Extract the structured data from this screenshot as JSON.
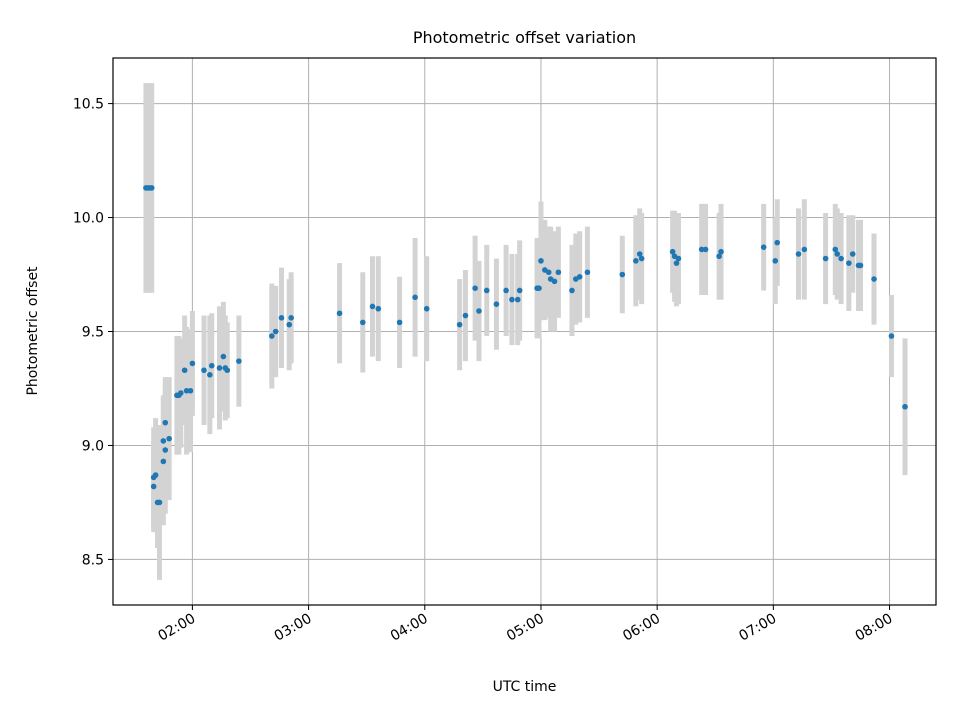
{
  "chart_data": {
    "type": "scatter",
    "title": "Photometric offset variation",
    "xlabel": "UTC time",
    "ylabel": "Photometric offset",
    "grid": true,
    "x_ticks": [
      "02:00",
      "03:00",
      "04:00",
      "05:00",
      "06:00",
      "07:00",
      "08:00"
    ],
    "y_ticks": [
      "8.5",
      "9.0",
      "9.5",
      "10.0",
      "10.5"
    ],
    "xlim": [
      "01:19",
      "08:24"
    ],
    "ylim": [
      8.3,
      10.7
    ],
    "colors": {
      "point": "#1f77b4",
      "errorbar": "#d3d3d3",
      "grid": "#b0b0b0"
    },
    "points": [
      {
        "x": "01:36",
        "y": 10.13,
        "err": 0.46
      },
      {
        "x": "01:37",
        "y": 10.13,
        "err": 0.46
      },
      {
        "x": "01:38",
        "y": 10.13,
        "err": 0.46
      },
      {
        "x": "01:39",
        "y": 10.13,
        "err": 0.46
      },
      {
        "x": "01:40",
        "y": 8.86,
        "err": 0.22
      },
      {
        "x": "01:40",
        "y": 8.82,
        "err": 0.2
      },
      {
        "x": "01:41",
        "y": 8.87,
        "err": 0.25
      },
      {
        "x": "01:42",
        "y": 8.75,
        "err": 0.2
      },
      {
        "x": "01:43",
        "y": 8.75,
        "err": 0.34
      },
      {
        "x": "01:45",
        "y": 9.02,
        "err": 0.2
      },
      {
        "x": "01:45",
        "y": 8.93,
        "err": 0.28
      },
      {
        "x": "01:46",
        "y": 8.98,
        "err": 0.28
      },
      {
        "x": "01:46",
        "y": 9.1,
        "err": 0.2
      },
      {
        "x": "01:48",
        "y": 9.03,
        "err": 0.27
      },
      {
        "x": "01:52",
        "y": 9.22,
        "err": 0.26
      },
      {
        "x": "01:53",
        "y": 9.22,
        "err": 0.26
      },
      {
        "x": "01:54",
        "y": 9.23,
        "err": 0.24
      },
      {
        "x": "01:56",
        "y": 9.33,
        "err": 0.24
      },
      {
        "x": "01:57",
        "y": 9.24,
        "err": 0.28
      },
      {
        "x": "01:59",
        "y": 9.24,
        "err": 0.27
      },
      {
        "x": "02:00",
        "y": 9.36,
        "err": 0.23
      },
      {
        "x": "02:06",
        "y": 9.33,
        "err": 0.24
      },
      {
        "x": "02:09",
        "y": 9.31,
        "err": 0.26
      },
      {
        "x": "02:10",
        "y": 9.35,
        "err": 0.23
      },
      {
        "x": "02:14",
        "y": 9.34,
        "err": 0.27
      },
      {
        "x": "02:16",
        "y": 9.39,
        "err": 0.24
      },
      {
        "x": "02:17",
        "y": 9.34,
        "err": 0.23
      },
      {
        "x": "02:18",
        "y": 9.33,
        "err": 0.21
      },
      {
        "x": "02:24",
        "y": 9.37,
        "err": 0.2
      },
      {
        "x": "02:41",
        "y": 9.48,
        "err": 0.23
      },
      {
        "x": "02:43",
        "y": 9.5,
        "err": 0.2
      },
      {
        "x": "02:46",
        "y": 9.56,
        "err": 0.22
      },
      {
        "x": "02:50",
        "y": 9.53,
        "err": 0.2
      },
      {
        "x": "02:51",
        "y": 9.56,
        "err": 0.2
      },
      {
        "x": "03:16",
        "y": 9.58,
        "err": 0.22
      },
      {
        "x": "03:28",
        "y": 9.54,
        "err": 0.22
      },
      {
        "x": "03:33",
        "y": 9.61,
        "err": 0.22
      },
      {
        "x": "03:36",
        "y": 9.6,
        "err": 0.23
      },
      {
        "x": "03:47",
        "y": 9.54,
        "err": 0.2
      },
      {
        "x": "03:55",
        "y": 9.65,
        "err": 0.26
      },
      {
        "x": "04:01",
        "y": 9.6,
        "err": 0.23
      },
      {
        "x": "04:18",
        "y": 9.53,
        "err": 0.2
      },
      {
        "x": "04:21",
        "y": 9.57,
        "err": 0.2
      },
      {
        "x": "04:26",
        "y": 9.69,
        "err": 0.23
      },
      {
        "x": "04:28",
        "y": 9.59,
        "err": 0.22
      },
      {
        "x": "04:32",
        "y": 9.68,
        "err": 0.2
      },
      {
        "x": "04:37",
        "y": 9.62,
        "err": 0.2
      },
      {
        "x": "04:42",
        "y": 9.68,
        "err": 0.2
      },
      {
        "x": "04:45",
        "y": 9.64,
        "err": 0.2
      },
      {
        "x": "04:48",
        "y": 9.64,
        "err": 0.2
      },
      {
        "x": "04:49",
        "y": 9.68,
        "err": 0.22
      },
      {
        "x": "04:58",
        "y": 9.69,
        "err": 0.22
      },
      {
        "x": "04:59",
        "y": 9.69,
        "err": 0.22
      },
      {
        "x": "05:00",
        "y": 9.81,
        "err": 0.26
      },
      {
        "x": "05:02",
        "y": 9.77,
        "err": 0.22
      },
      {
        "x": "05:04",
        "y": 9.76,
        "err": 0.2
      },
      {
        "x": "05:05",
        "y": 9.73,
        "err": 0.23
      },
      {
        "x": "05:07",
        "y": 9.72,
        "err": 0.22
      },
      {
        "x": "05:09",
        "y": 9.76,
        "err": 0.2
      },
      {
        "x": "05:16",
        "y": 9.68,
        "err": 0.2
      },
      {
        "x": "05:18",
        "y": 9.73,
        "err": 0.2
      },
      {
        "x": "05:20",
        "y": 9.74,
        "err": 0.2
      },
      {
        "x": "05:24",
        "y": 9.76,
        "err": 0.2
      },
      {
        "x": "05:42",
        "y": 9.75,
        "err": 0.17
      },
      {
        "x": "05:49",
        "y": 9.81,
        "err": 0.2
      },
      {
        "x": "05:51",
        "y": 9.84,
        "err": 0.2
      },
      {
        "x": "05:52",
        "y": 9.82,
        "err": 0.2
      },
      {
        "x": "06:08",
        "y": 9.85,
        "err": 0.18
      },
      {
        "x": "06:09",
        "y": 9.83,
        "err": 0.2
      },
      {
        "x": "06:10",
        "y": 9.8,
        "err": 0.19
      },
      {
        "x": "06:11",
        "y": 9.82,
        "err": 0.2
      },
      {
        "x": "06:23",
        "y": 9.86,
        "err": 0.2
      },
      {
        "x": "06:25",
        "y": 9.86,
        "err": 0.2
      },
      {
        "x": "06:32",
        "y": 9.83,
        "err": 0.19
      },
      {
        "x": "06:33",
        "y": 9.85,
        "err": 0.21
      },
      {
        "x": "06:55",
        "y": 9.87,
        "err": 0.19
      },
      {
        "x": "07:01",
        "y": 9.81,
        "err": 0.19
      },
      {
        "x": "07:02",
        "y": 9.89,
        "err": 0.19
      },
      {
        "x": "07:13",
        "y": 9.84,
        "err": 0.2
      },
      {
        "x": "07:16",
        "y": 9.86,
        "err": 0.22
      },
      {
        "x": "07:27",
        "y": 9.82,
        "err": 0.2
      },
      {
        "x": "07:32",
        "y": 9.86,
        "err": 0.2
      },
      {
        "x": "07:33",
        "y": 9.84,
        "err": 0.2
      },
      {
        "x": "07:35",
        "y": 9.82,
        "err": 0.2
      },
      {
        "x": "07:39",
        "y": 9.8,
        "err": 0.21
      },
      {
        "x": "07:41",
        "y": 9.84,
        "err": 0.17
      },
      {
        "x": "07:44",
        "y": 9.79,
        "err": 0.2
      },
      {
        "x": "07:45",
        "y": 9.79,
        "err": 0.2
      },
      {
        "x": "07:52",
        "y": 9.73,
        "err": 0.2
      },
      {
        "x": "08:01",
        "y": 9.48,
        "err": 0.18
      },
      {
        "x": "08:08",
        "y": 9.17,
        "err": 0.3
      }
    ]
  }
}
